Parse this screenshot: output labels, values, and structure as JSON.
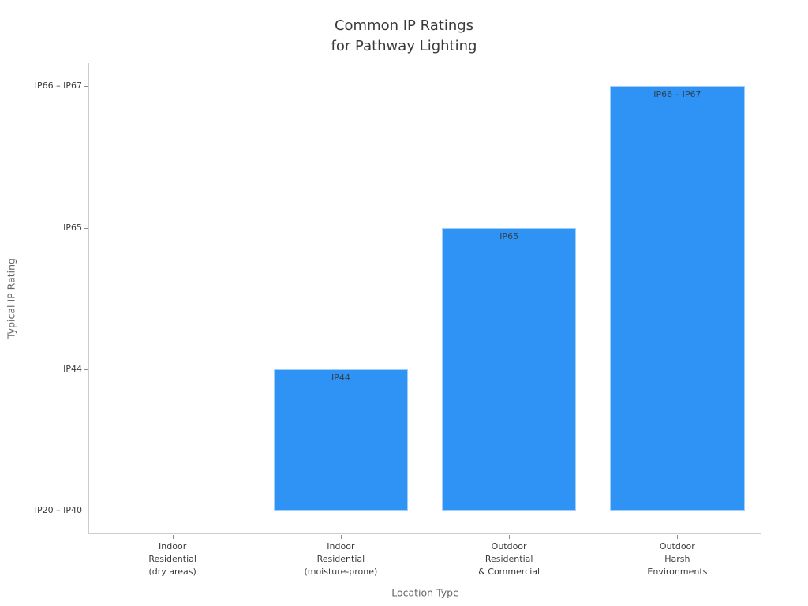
{
  "chart_data": {
    "type": "bar",
    "title": "Common IP Ratings\nfor Pathway Lighting",
    "xlabel": "Location Type",
    "ylabel": "Typical IP Rating",
    "categories": [
      "Indoor\nResidential\n(dry areas)",
      "Indoor\nResidential\n(moisture-prone)",
      "Outdoor\nResidential\n& Commercial",
      "Outdoor\nHarsh\nEnvironments"
    ],
    "values": [
      1,
      2,
      3,
      4
    ],
    "bar_labels": [
      "",
      "IP44",
      "IP65",
      "IP66 – IP67"
    ],
    "baseline_value": 1,
    "ytick_values": [
      1,
      2,
      3,
      4
    ],
    "ytick_labels": [
      "IP20 – IP40",
      "IP44",
      "IP65",
      "IP66 – IP67"
    ],
    "ylim": [
      0.833,
      4.163
    ],
    "bar_width_fraction": 0.8,
    "grid": false,
    "legend": null,
    "colors": {
      "bar": "#2F93F6",
      "title": "#3A3A3A",
      "tick_label": "#3A3A3A",
      "axis_label": "#666666",
      "spine": "#CCCCCC",
      "tick_mark": "#8C8C8C",
      "bar_label": "#34404A"
    }
  }
}
